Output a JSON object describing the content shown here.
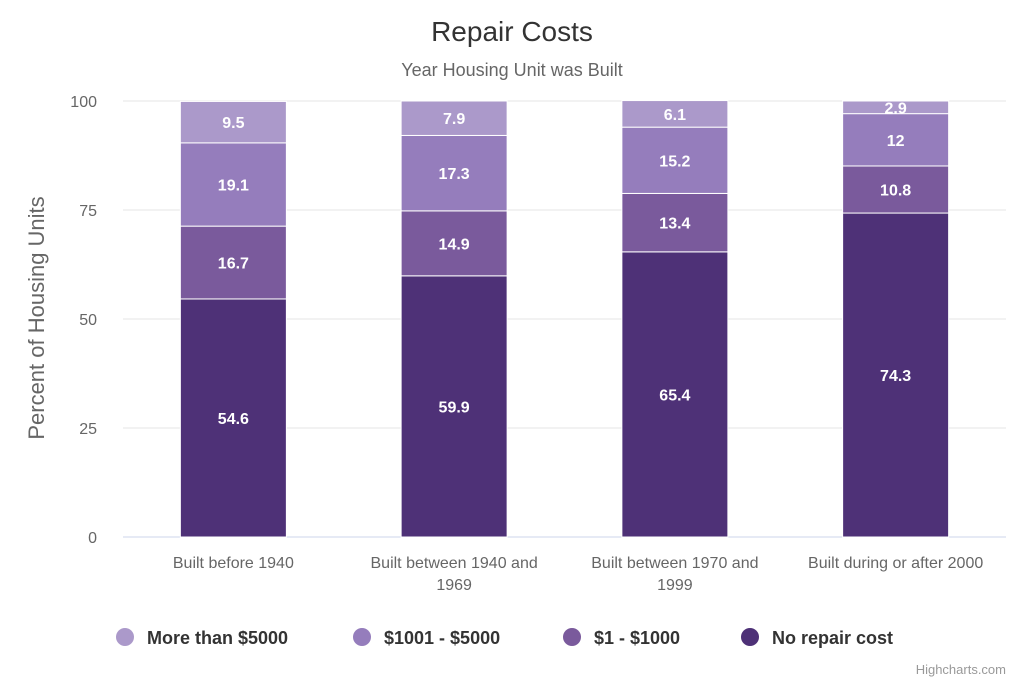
{
  "chart_data": {
    "type": "bar",
    "stacked": true,
    "title": "Repair Costs",
    "subtitle": "Year Housing Unit was Built",
    "ylabel": "Percent of Housing Units",
    "ylim": [
      0,
      100
    ],
    "yticks": [
      0,
      25,
      50,
      75,
      100
    ],
    "grid": true,
    "legend_position": "bottom",
    "categories": [
      [
        "Built before 1940"
      ],
      [
        "Built between 1940 and",
        "1969"
      ],
      [
        "Built between 1970 and",
        "1999"
      ],
      [
        "Built during or after 2000"
      ]
    ],
    "series": [
      {
        "name": "No repair cost",
        "color": "#4e3177",
        "values": [
          54.6,
          59.9,
          65.4,
          74.3
        ]
      },
      {
        "name": "$1 - $1000",
        "color": "#7a5a9c",
        "values": [
          16.7,
          14.9,
          13.4,
          10.8
        ]
      },
      {
        "name": "$1001 - $5000",
        "color": "#957dbc",
        "values": [
          19.1,
          17.3,
          15.2,
          12
        ]
      },
      {
        "name": "More than $5000",
        "color": "#ab99ca",
        "values": [
          9.5,
          7.9,
          6.1,
          2.9
        ]
      }
    ],
    "legend_order": [
      "More than $5000",
      "$1001 - $5000",
      "$1 - $1000",
      "No repair cost"
    ],
    "credits": "Highcharts.com"
  }
}
